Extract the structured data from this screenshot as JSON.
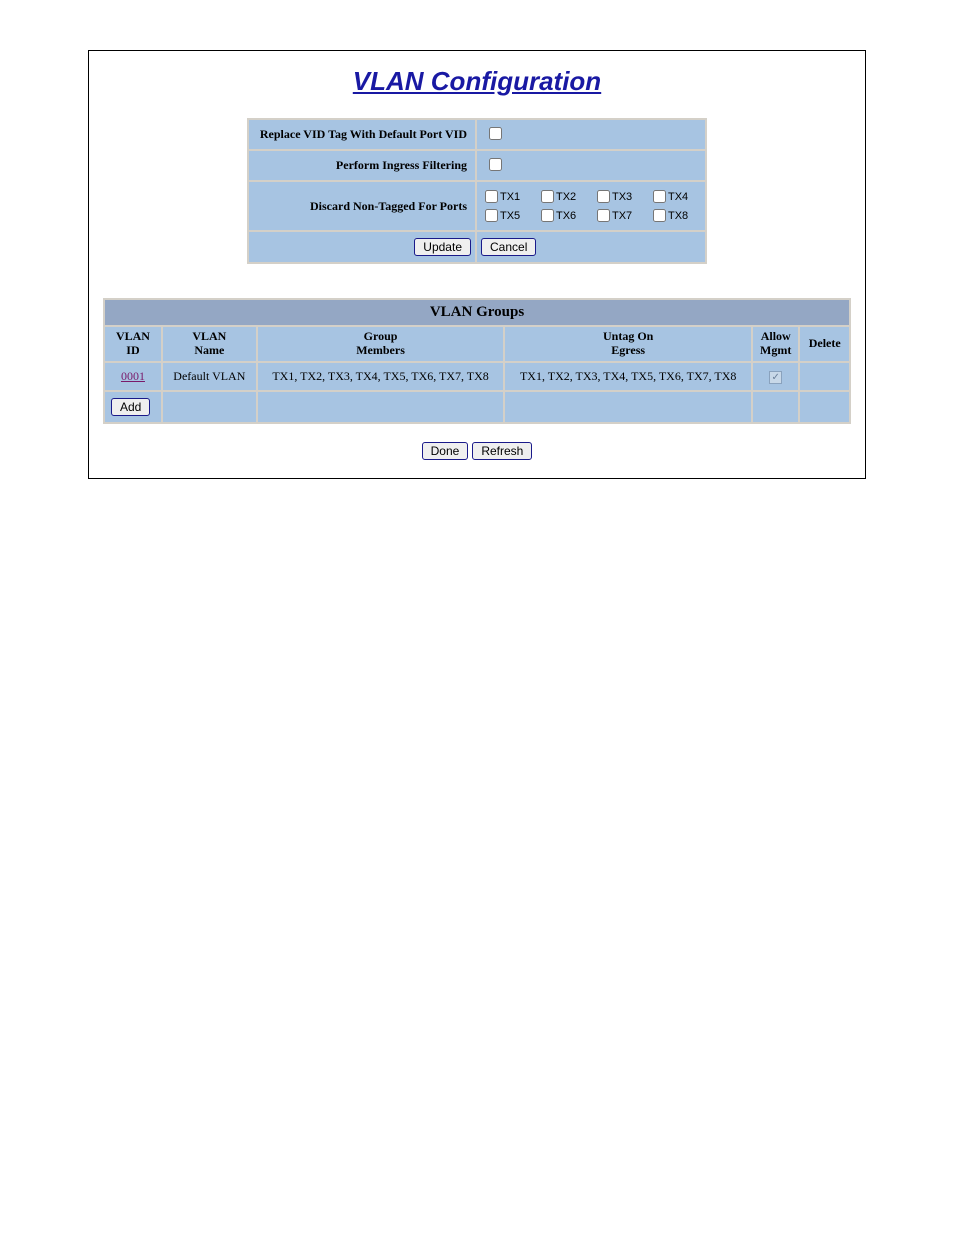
{
  "title": "VLAN Configuration",
  "settings": {
    "rows": [
      {
        "label": "Replace VID Tag With Default Port VID",
        "type": "checkbox",
        "checked": false
      },
      {
        "label": "Perform Ingress Filtering",
        "type": "checkbox",
        "checked": false
      },
      {
        "label": "Discard Non-Tagged For Ports",
        "type": "ports"
      }
    ],
    "ports": [
      {
        "label": "TX1",
        "checked": false
      },
      {
        "label": "TX2",
        "checked": false
      },
      {
        "label": "TX3",
        "checked": false
      },
      {
        "label": "TX4",
        "checked": false
      },
      {
        "label": "TX5",
        "checked": false
      },
      {
        "label": "TX6",
        "checked": false
      },
      {
        "label": "TX7",
        "checked": false
      },
      {
        "label": "TX8",
        "checked": false
      }
    ],
    "update_label": "Update",
    "cancel_label": "Cancel"
  },
  "groups": {
    "title": "VLAN Groups",
    "headers": {
      "id": "VLAN\nID",
      "name": "VLAN\nName",
      "mem": "Group\nMembers",
      "untag": "Untag On\nEgress",
      "allow": "Allow\nMgmt",
      "del": "Delete"
    },
    "rows": [
      {
        "id": "0001",
        "name": "Default VLAN",
        "members": "TX1, TX2, TX3, TX4, TX5, TX6, TX7, TX8",
        "untag": "TX1, TX2, TX3, TX4, TX5, TX6, TX7, TX8",
        "allow_mgmt": true,
        "delete": ""
      }
    ],
    "add_label": "Add"
  },
  "bottom": {
    "done_label": "Done",
    "refresh_label": "Refresh"
  },
  "colors": {
    "header_blue": "#94a7c4",
    "cell_blue": "#a7c4e2",
    "border_grey": "#d4d0c8",
    "title_link": "#1919a3",
    "visited_link": "#7a1a6a"
  }
}
